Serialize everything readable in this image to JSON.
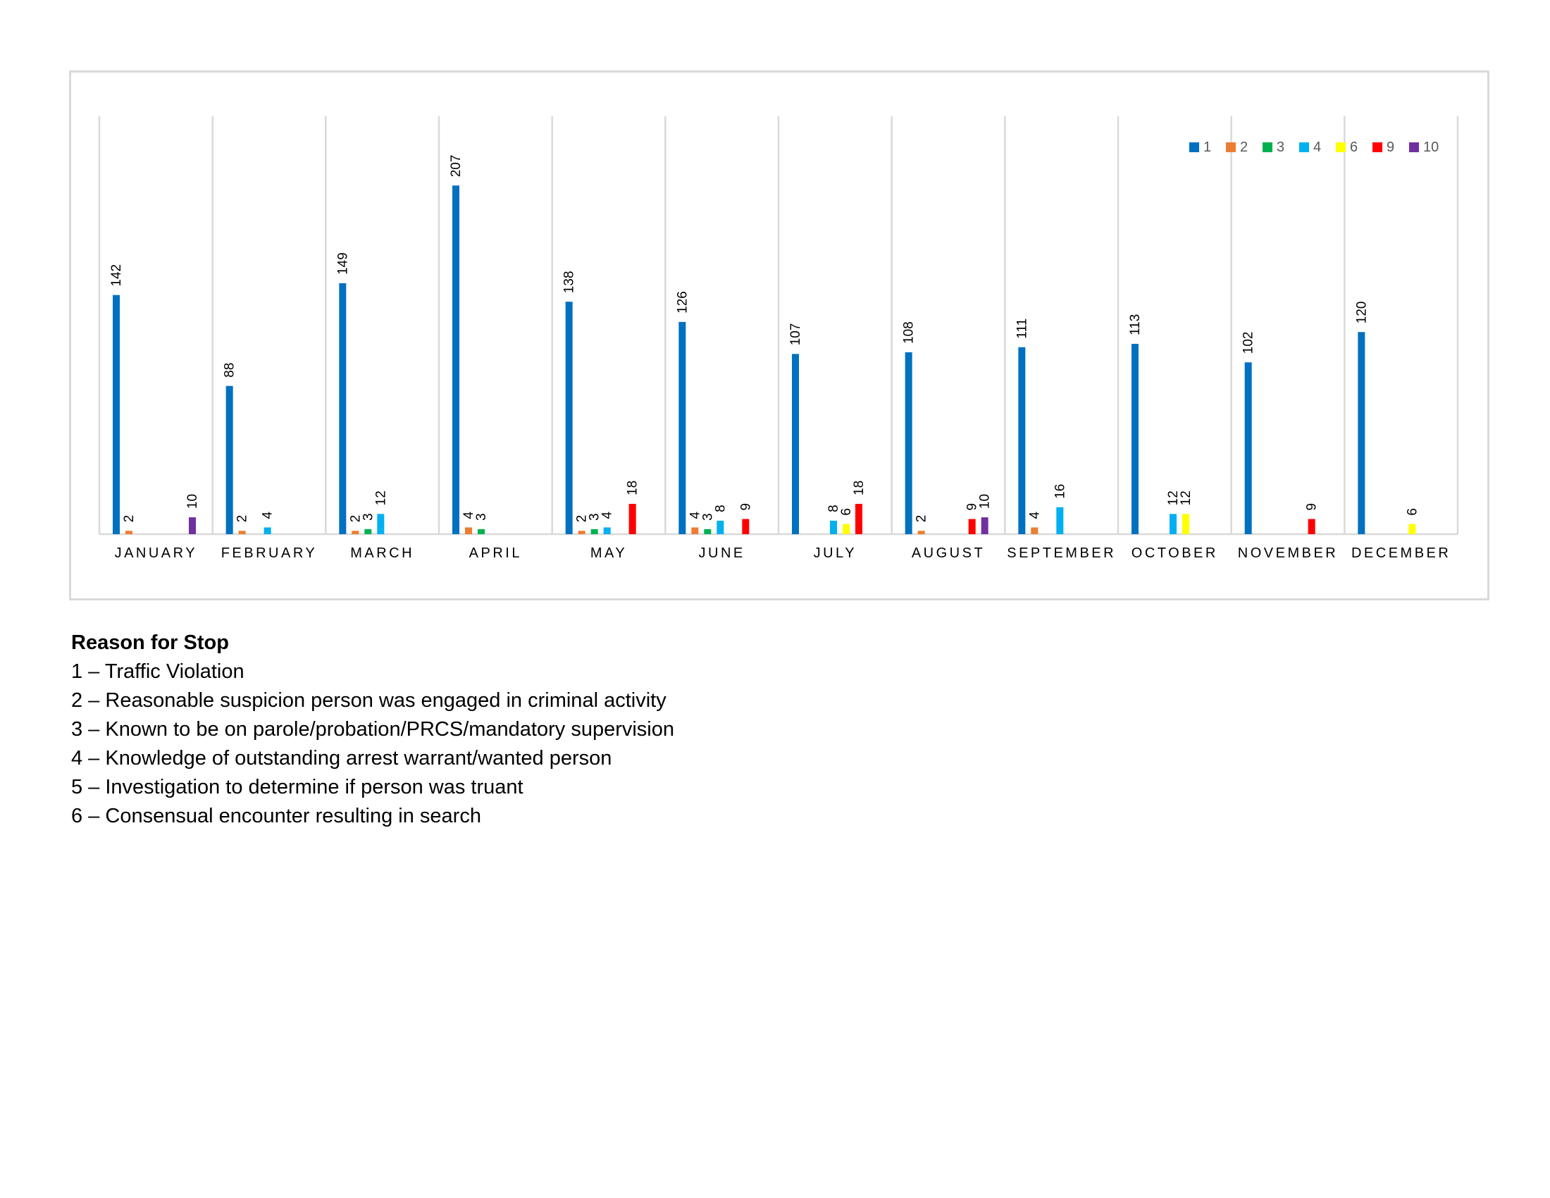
{
  "chart_data": {
    "type": "bar",
    "title": "",
    "xlabel": "",
    "ylabel": "",
    "ylim": [
      0,
      240
    ],
    "grid": false,
    "legend_position": "top-right",
    "categories": [
      "JANUARY",
      "FEBRUARY",
      "MARCH",
      "APRIL",
      "MAY",
      "JUNE",
      "JULY",
      "AUGUST",
      "SEPTEMBER",
      "OCTOBER",
      "NOVEMBER",
      "DECEMBER"
    ],
    "series": [
      {
        "name": "1",
        "color": "#0070C0",
        "values": [
          142,
          88,
          149,
          207,
          138,
          126,
          107,
          108,
          111,
          113,
          102,
          120
        ]
      },
      {
        "name": "2",
        "color": "#ED7D31",
        "values": [
          2,
          2,
          2,
          4,
          2,
          4,
          null,
          2,
          4,
          null,
          null,
          null
        ]
      },
      {
        "name": "3",
        "color": "#00B050",
        "values": [
          null,
          null,
          3,
          3,
          3,
          3,
          null,
          null,
          null,
          null,
          null,
          null
        ]
      },
      {
        "name": "4",
        "color": "#00B0F0",
        "values": [
          null,
          4,
          12,
          null,
          4,
          8,
          8,
          null,
          16,
          12,
          null,
          null
        ]
      },
      {
        "name": "6",
        "color": "#FFFF00",
        "values": [
          null,
          null,
          null,
          null,
          null,
          null,
          6,
          null,
          null,
          12,
          null,
          6
        ]
      },
      {
        "name": "9",
        "color": "#FF0000",
        "values": [
          null,
          null,
          null,
          null,
          18,
          9,
          18,
          9,
          null,
          null,
          9,
          null
        ]
      },
      {
        "name": "10",
        "color": "#7030A0",
        "values": [
          10,
          null,
          null,
          null,
          null,
          null,
          null,
          10,
          null,
          null,
          null,
          null
        ]
      }
    ]
  },
  "reasons": {
    "title": "Reason for Stop",
    "items": [
      "1 – Traffic Violation",
      "2 – Reasonable suspicion person was engaged in criminal activity",
      "3 – Known to be on parole/probation/PRCS/mandatory supervision",
      "4 – Knowledge of outstanding arrest warrant/wanted person",
      "5 – Investigation to determine if person was truant",
      "6 – Consensual encounter resulting in search"
    ]
  }
}
